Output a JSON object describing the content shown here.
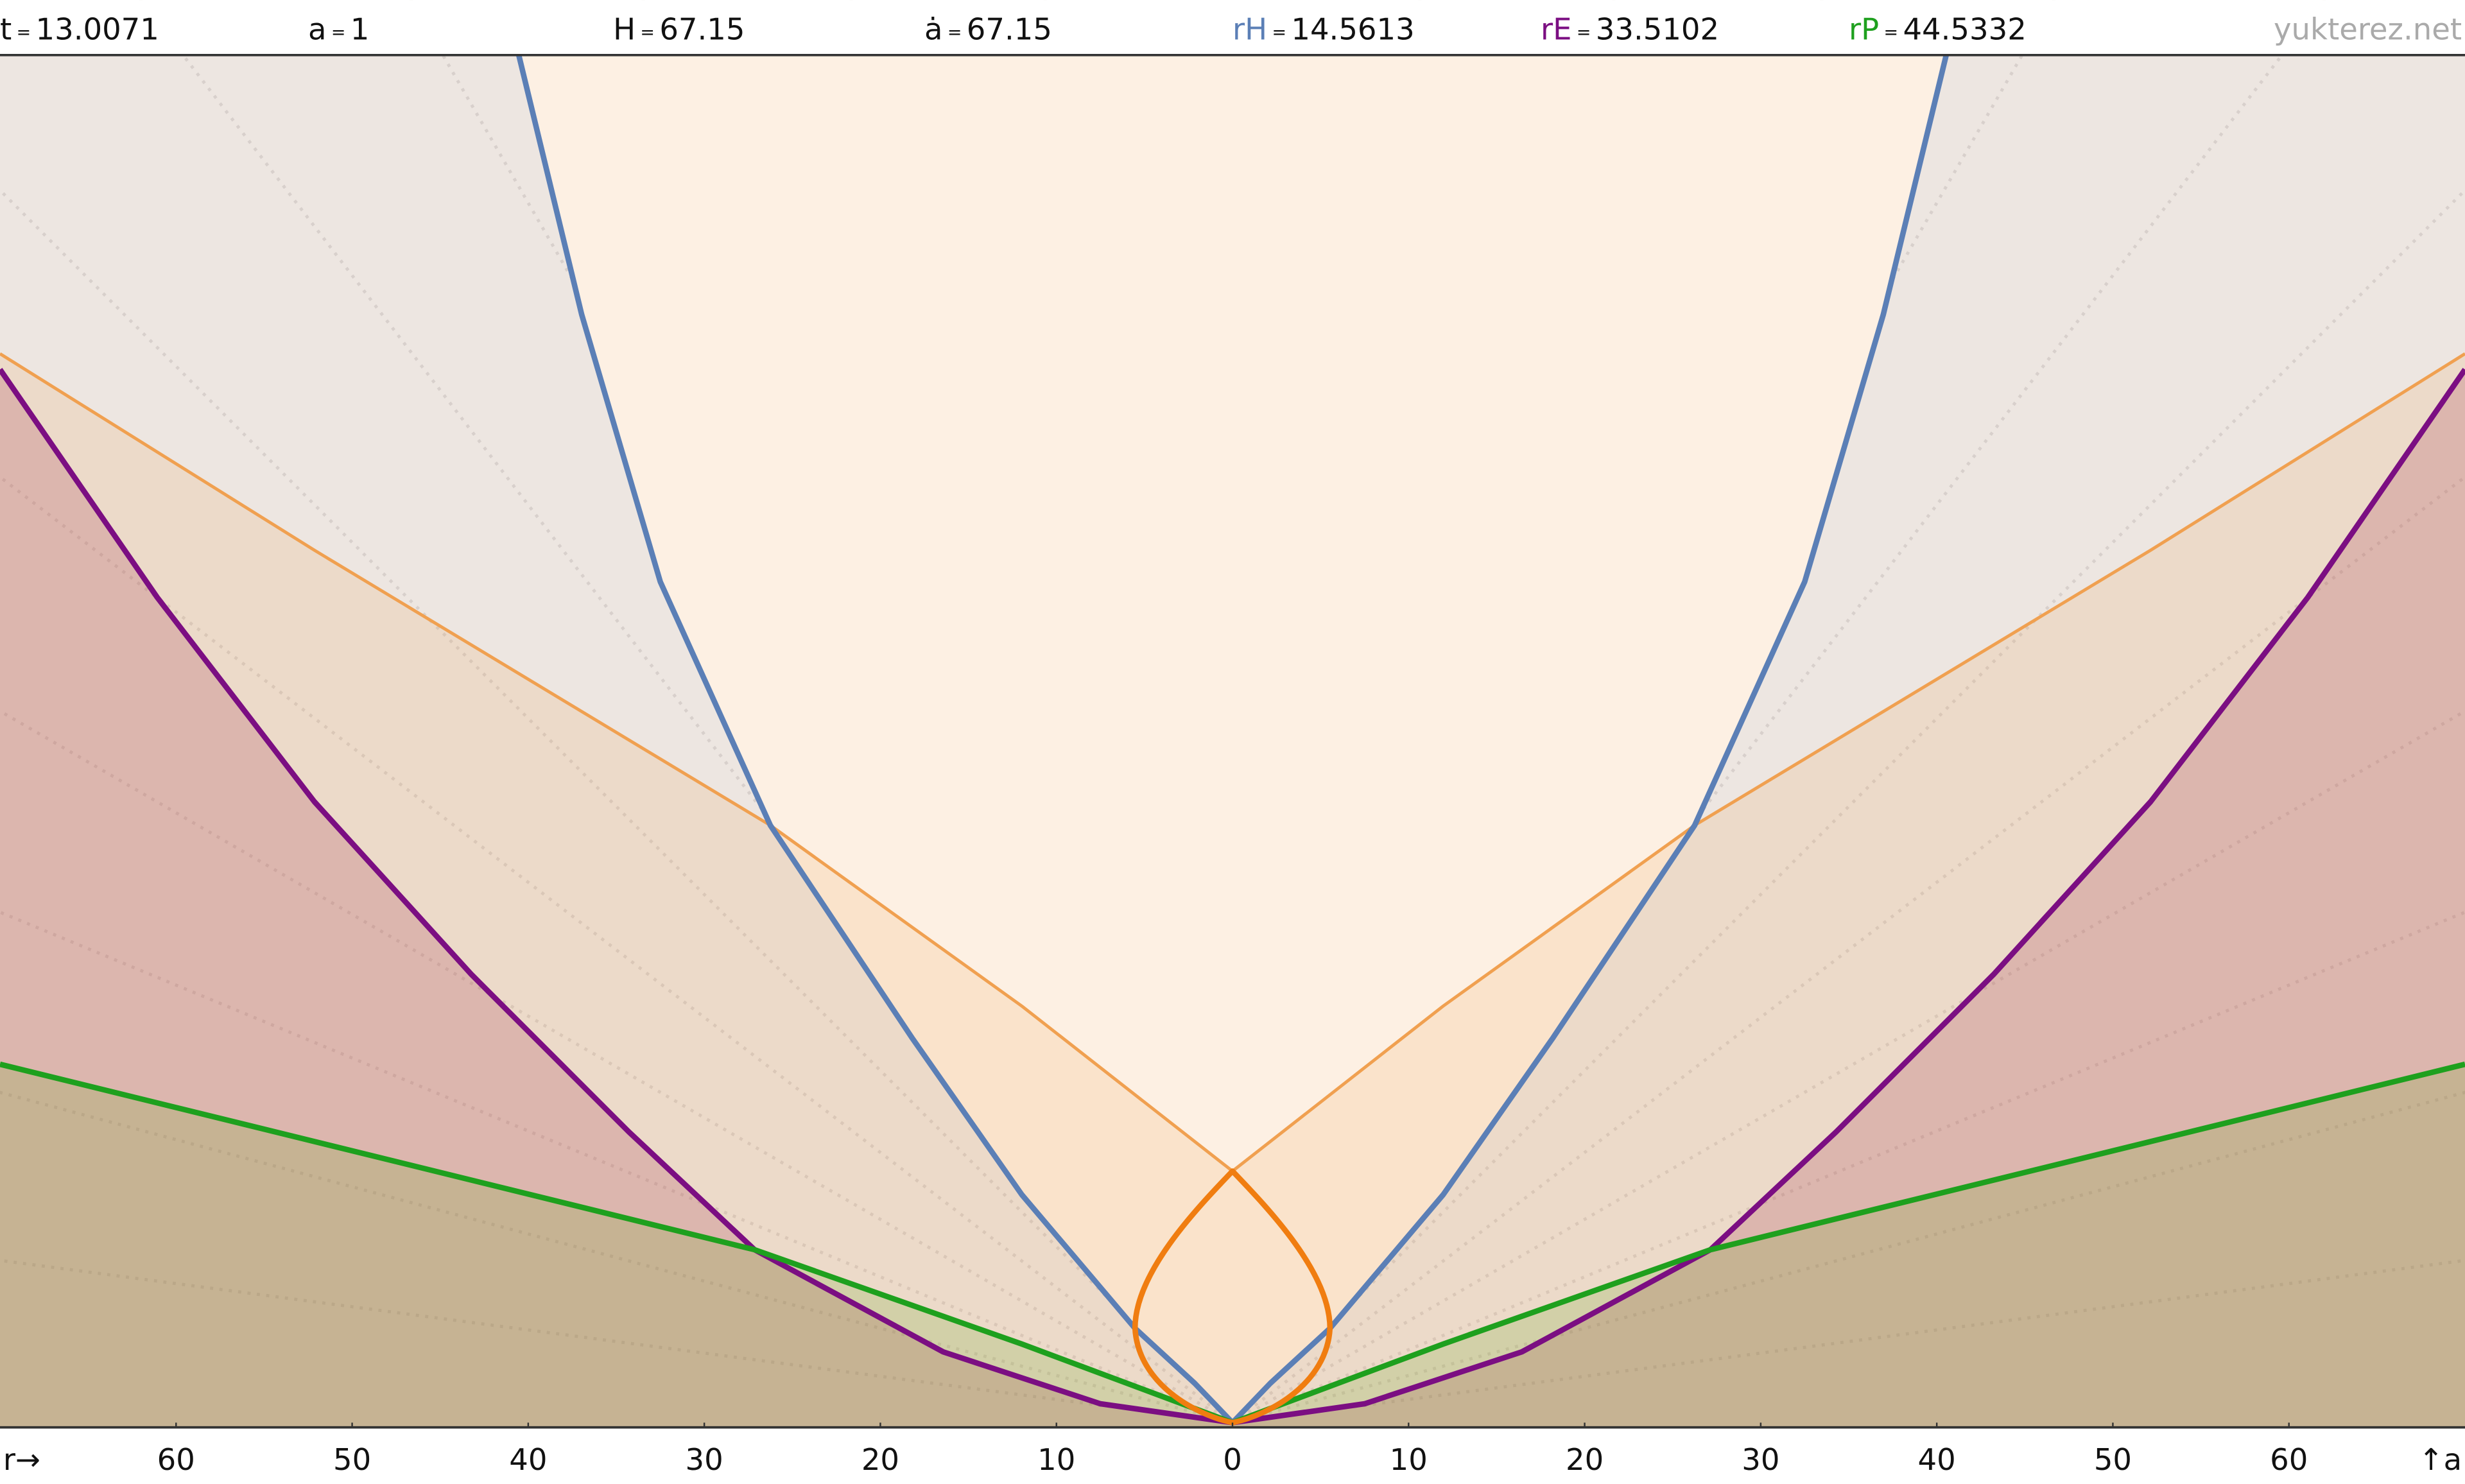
{
  "header": {
    "items": [
      {
        "label": "t",
        "sep": "=",
        "value": "13.0071"
      },
      {
        "label": "a",
        "sep": "=",
        "value": "1"
      },
      {
        "label": "H",
        "sep": "=",
        "value": "67.15"
      },
      {
        "label": "ȧ",
        "sep": "=",
        "value": "67.15"
      },
      {
        "label": "rH",
        "sep": "=",
        "value": "14.5613"
      },
      {
        "label": "rE",
        "sep": "=",
        "value": "33.5102"
      },
      {
        "label": "rP",
        "sep": "=",
        "value": "44.5332"
      }
    ],
    "watermark": "yukterez.net"
  },
  "axis": {
    "r_label": "r→",
    "a_label": "↑a",
    "left_ticks": [
      60,
      50,
      40,
      30,
      20,
      10
    ],
    "center_tick": 0,
    "right_ticks": [
      10,
      20,
      30,
      40,
      50,
      60
    ]
  }
}
